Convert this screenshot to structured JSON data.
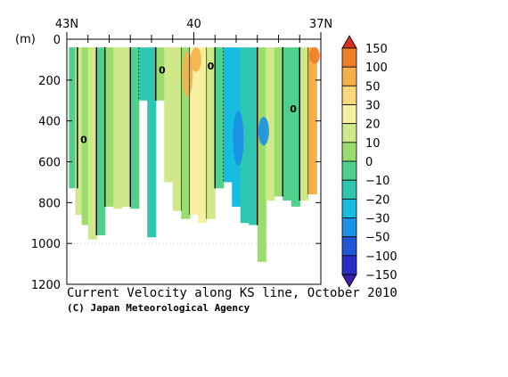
{
  "chart_data": {
    "type": "heatmap",
    "title": "Current Velocity along KS line, October 2010",
    "credit": "(C) Japan Meteorological Agency",
    "ylabel": "(m)",
    "x_axis": {
      "range": [
        43,
        37
      ],
      "ticks": [
        {
          "value": 43,
          "label": "43N"
        },
        {
          "value": 40,
          "label": "40"
        },
        {
          "value": 37,
          "label": "37N"
        }
      ],
      "minor_ticks": [
        42.5,
        42,
        41.5,
        41,
        40.5,
        39.5,
        39,
        38.5,
        38,
        37.5
      ]
    },
    "y_axis": {
      "range": [
        0,
        1200
      ],
      "ticks": [
        0,
        200,
        400,
        600,
        800,
        1000,
        1200
      ]
    },
    "colorbar": {
      "levels": [
        "150",
        "100",
        "50",
        "30",
        "20",
        "10",
        "0",
        "−10",
        "−20",
        "−30",
        "−50",
        "−100",
        "−150"
      ],
      "colors": [
        "#d7301f",
        "#f07f2a",
        "#f6b04a",
        "#fad77a",
        "#f6f0a0",
        "#cfe98a",
        "#9bdc6e",
        "#4fd08c",
        "#2ec6b0",
        "#17bde0",
        "#1a90e6",
        "#1f57d6",
        "#2b2ec4",
        "#3b1fa8"
      ]
    },
    "columns": [
      {
        "lat": 42.85,
        "bottom": 730,
        "v": -10
      },
      {
        "lat": 42.7,
        "bottom": 860,
        "v": 10
      },
      {
        "lat": 42.55,
        "bottom": 910,
        "v": 5
      },
      {
        "lat": 42.4,
        "bottom": 980,
        "v": 12
      },
      {
        "lat": 42.2,
        "bottom": 960,
        "v": -8
      },
      {
        "lat": 42.0,
        "bottom": 820,
        "v": 6
      },
      {
        "lat": 41.8,
        "bottom": 830,
        "v": 15
      },
      {
        "lat": 41.6,
        "bottom": 820,
        "v": 10
      },
      {
        "lat": 41.4,
        "bottom": 830,
        "v": -5
      },
      {
        "lat": 41.2,
        "bottom": 300,
        "v": -20
      },
      {
        "lat": 41.0,
        "bottom": 970,
        "v": -12
      },
      {
        "lat": 40.8,
        "bottom": 300,
        "v": 5
      },
      {
        "lat": 40.6,
        "bottom": 700,
        "v": 14
      },
      {
        "lat": 40.4,
        "bottom": 840,
        "v": 18
      },
      {
        "lat": 40.2,
        "bottom": 880,
        "v": 8
      },
      {
        "lat": 40.0,
        "bottom": 860,
        "v": 25
      },
      {
        "lat": 39.8,
        "bottom": 900,
        "v": 20
      },
      {
        "lat": 39.6,
        "bottom": 880,
        "v": 10
      },
      {
        "lat": 39.4,
        "bottom": 730,
        "v": -6
      },
      {
        "lat": 39.2,
        "bottom": 700,
        "v": -25
      },
      {
        "lat": 39.0,
        "bottom": 820,
        "v": -22
      },
      {
        "lat": 38.8,
        "bottom": 900,
        "v": -15
      },
      {
        "lat": 38.6,
        "bottom": 910,
        "v": -12
      },
      {
        "lat": 38.4,
        "bottom": 1090,
        "v": 8
      },
      {
        "lat": 38.2,
        "bottom": 790,
        "v": 12
      },
      {
        "lat": 38.0,
        "bottom": 770,
        "v": 6
      },
      {
        "lat": 37.8,
        "bottom": 790,
        "v": -8
      },
      {
        "lat": 37.6,
        "bottom": 820,
        "v": -10
      },
      {
        "lat": 37.4,
        "bottom": 790,
        "v": 18
      },
      {
        "lat": 37.2,
        "bottom": 760,
        "v": 60
      }
    ],
    "features": [
      {
        "lat": 40.15,
        "top": 60,
        "bottom": 280,
        "v": 60
      },
      {
        "lat": 39.95,
        "top": 40,
        "bottom": 160,
        "v": 90
      },
      {
        "lat": 37.15,
        "top": 40,
        "bottom": 120,
        "v": 130
      },
      {
        "lat": 38.95,
        "top": 350,
        "bottom": 620,
        "v": -45
      },
      {
        "lat": 38.35,
        "top": 380,
        "bottom": 520,
        "v": -35
      }
    ],
    "contour_labels": [
      {
        "text": "0",
        "lat": 40.75,
        "depth": 150
      },
      {
        "text": "0",
        "lat": 39.6,
        "depth": 130
      },
      {
        "text": "0",
        "lat": 37.65,
        "depth": 340
      },
      {
        "text": "0",
        "lat": 42.6,
        "depth": 490
      }
    ]
  }
}
